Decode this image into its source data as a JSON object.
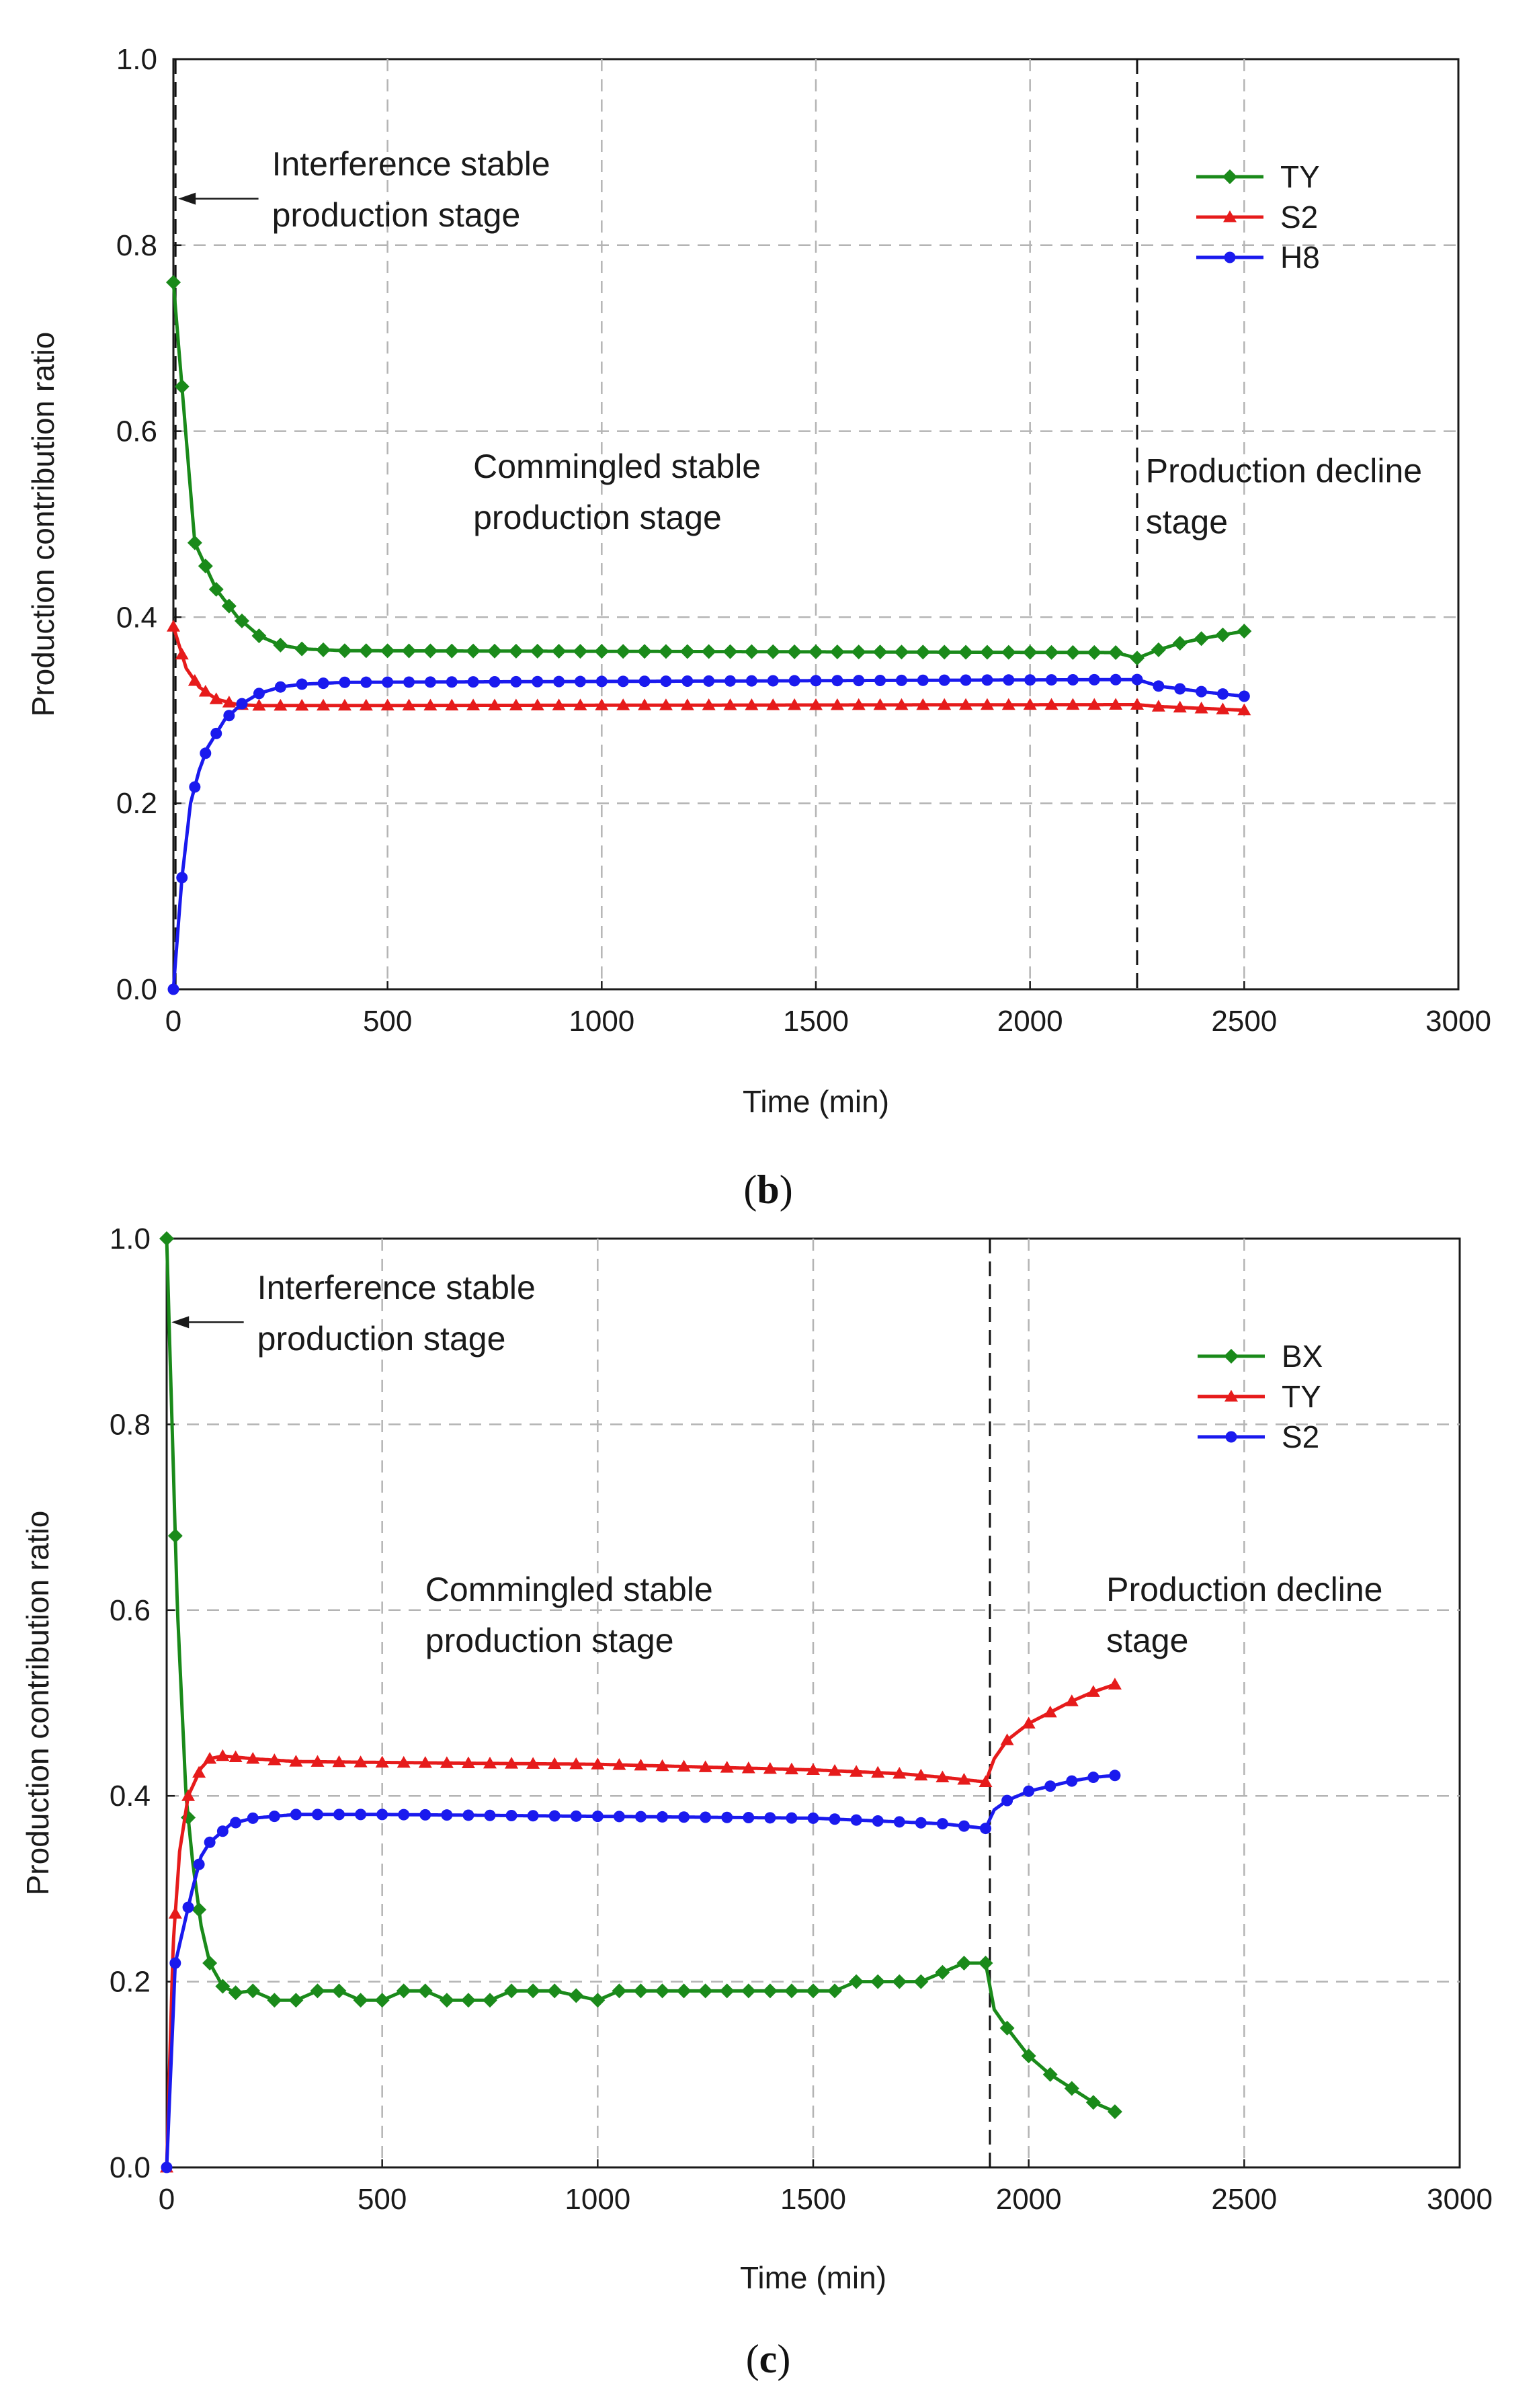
{
  "chart_data": [
    {
      "id": "b",
      "type": "line",
      "subfigure_label": "b",
      "xlabel": "Time (min)",
      "ylabel": "Production contribution ratio",
      "xlim": [
        0,
        3000
      ],
      "ylim": [
        0,
        1.0
      ],
      "xticks": [
        0,
        500,
        1000,
        1500,
        2000,
        2500,
        3000
      ],
      "yticks": [
        0.0,
        0.2,
        0.4,
        0.6,
        0.8,
        1.0
      ],
      "xtick_labels": [
        "0",
        "500",
        "1000",
        "1500",
        "2000",
        "2500",
        "3000"
      ],
      "ytick_labels": [
        "0.0",
        "0.2",
        "0.4",
        "0.6",
        "0.8",
        "1.0"
      ],
      "grid": true,
      "stage_lines_x": [
        5,
        2250
      ],
      "annotations": [
        {
          "text": "Interference stable production stage",
          "lines": [
            "Interference stable",
            "production stage"
          ],
          "pos": [
            230,
            0.875
          ],
          "arrow_to": [
            5,
            0.85
          ]
        },
        {
          "text": "Commingled stable production stage",
          "lines": [
            "Commingled stable",
            "production stage"
          ],
          "pos": [
            700,
            0.55
          ]
        },
        {
          "text": "Production decline stage",
          "lines": [
            "Production decline",
            "stage"
          ],
          "pos": [
            2270,
            0.545
          ]
        }
      ],
      "legend_position": "top-right",
      "series": [
        {
          "name": "TY",
          "color": "#1a8a1a",
          "marker": "diamond",
          "points": [
            [
              0,
              0.76
            ],
            [
              50,
              0.48
            ],
            [
              100,
              0.43
            ],
            [
              150,
              0.4
            ],
            [
              200,
              0.38
            ],
            [
              250,
              0.37
            ],
            [
              300,
              0.366
            ],
            [
              350,
              0.365
            ],
            [
              400,
              0.364
            ],
            [
              2200,
              0.362
            ],
            [
              2250,
              0.356
            ],
            [
              2300,
              0.365
            ],
            [
              2350,
              0.372
            ],
            [
              2400,
              0.377
            ],
            [
              2450,
              0.381
            ],
            [
              2500,
              0.385
            ]
          ]
        },
        {
          "name": "S2",
          "color": "#e61b1b",
          "marker": "triangle",
          "points": [
            [
              0,
              0.39
            ],
            [
              30,
              0.345
            ],
            [
              60,
              0.325
            ],
            [
              100,
              0.312
            ],
            [
              150,
              0.306
            ],
            [
              200,
              0.305
            ],
            [
              2250,
              0.306
            ],
            [
              2300,
              0.304
            ],
            [
              2400,
              0.302
            ],
            [
              2500,
              0.3
            ]
          ]
        },
        {
          "name": "H8",
          "color": "#1a1aee",
          "marker": "circle",
          "points": [
            [
              0,
              0.0
            ],
            [
              20,
              0.12
            ],
            [
              40,
              0.2
            ],
            [
              60,
              0.235
            ],
            [
              80,
              0.26
            ],
            [
              120,
              0.29
            ],
            [
              160,
              0.307
            ],
            [
              200,
              0.318
            ],
            [
              250,
              0.325
            ],
            [
              300,
              0.328
            ],
            [
              400,
              0.33
            ],
            [
              2250,
              0.333
            ],
            [
              2300,
              0.326
            ],
            [
              2400,
              0.32
            ],
            [
              2500,
              0.315
            ]
          ]
        }
      ]
    },
    {
      "id": "c",
      "type": "line",
      "subfigure_label": "c",
      "xlabel": "Time (min)",
      "ylabel": "Production contribution ratio",
      "xlim": [
        0,
        3000
      ],
      "ylim": [
        0,
        1.0
      ],
      "xticks": [
        0,
        500,
        1000,
        1500,
        2000,
        2500,
        3000
      ],
      "yticks": [
        0.0,
        0.2,
        0.4,
        0.6,
        0.8,
        1.0
      ],
      "xtick_labels": [
        "0",
        "500",
        "1000",
        "1500",
        "2000",
        "2500",
        "3000"
      ],
      "ytick_labels": [
        "0.0",
        "0.2",
        "0.4",
        "0.6",
        "0.8",
        "1.0"
      ],
      "grid": true,
      "stage_lines_x": [
        1910
      ],
      "annotations": [
        {
          "text": "Interference stable production stage",
          "lines": [
            "Interference stable",
            "production stage"
          ],
          "pos": [
            210,
            0.935
          ],
          "arrow_to": [
            5,
            0.91
          ]
        },
        {
          "text": "Commingled stable production stage",
          "lines": [
            "Commingled stable",
            "production stage"
          ],
          "pos": [
            600,
            0.61
          ]
        },
        {
          "text": "Production decline stage",
          "lines": [
            "Production decline",
            "stage"
          ],
          "pos": [
            2180,
            0.61
          ]
        }
      ],
      "legend_position": "top-right",
      "series": [
        {
          "name": "BX",
          "color": "#1a8a1a",
          "marker": "diamond",
          "points": [
            [
              0,
              1.0
            ],
            [
              25,
              0.6
            ],
            [
              45,
              0.4
            ],
            [
              60,
              0.33
            ],
            [
              80,
              0.26
            ],
            [
              100,
              0.22
            ],
            [
              130,
              0.195
            ],
            [
              160,
              0.188
            ],
            [
              200,
              0.19
            ],
            [
              250,
              0.18
            ],
            [
              300,
              0.18
            ],
            [
              350,
              0.19
            ],
            [
              400,
              0.19
            ],
            [
              450,
              0.18
            ],
            [
              500,
              0.18
            ],
            [
              550,
              0.19
            ],
            [
              600,
              0.19
            ],
            [
              650,
              0.18
            ],
            [
              700,
              0.18
            ],
            [
              750,
              0.18
            ],
            [
              800,
              0.19
            ],
            [
              900,
              0.19
            ],
            [
              1000,
              0.18
            ],
            [
              1050,
              0.19
            ],
            [
              1500,
              0.19
            ],
            [
              1550,
              0.19
            ],
            [
              1600,
              0.2
            ],
            [
              1700,
              0.2
            ],
            [
              1750,
              0.2
            ],
            [
              1800,
              0.21
            ],
            [
              1850,
              0.22
            ],
            [
              1900,
              0.22
            ],
            [
              1920,
              0.17
            ],
            [
              1950,
              0.15
            ],
            [
              2000,
              0.12
            ],
            [
              2050,
              0.1
            ],
            [
              2100,
              0.085
            ],
            [
              2150,
              0.07
            ],
            [
              2200,
              0.06
            ]
          ]
        },
        {
          "name": "TY",
          "color": "#e61b1b",
          "marker": "triangle",
          "points": [
            [
              0,
              0.0
            ],
            [
              15,
              0.24
            ],
            [
              30,
              0.34
            ],
            [
              50,
              0.4
            ],
            [
              80,
              0.43
            ],
            [
              100,
              0.44
            ],
            [
              130,
              0.443
            ],
            [
              200,
              0.44
            ],
            [
              300,
              0.437
            ],
            [
              500,
              0.436
            ],
            [
              1000,
              0.434
            ],
            [
              1500,
              0.428
            ],
            [
              1700,
              0.424
            ],
            [
              1800,
              0.42
            ],
            [
              1900,
              0.415
            ],
            [
              1920,
              0.44
            ],
            [
              1950,
              0.46
            ],
            [
              2000,
              0.478
            ],
            [
              2050,
              0.49
            ],
            [
              2100,
              0.502
            ],
            [
              2150,
              0.512
            ],
            [
              2200,
              0.52
            ]
          ]
        },
        {
          "name": "S2",
          "color": "#1a1aee",
          "marker": "circle",
          "points": [
            [
              0,
              0.0
            ],
            [
              20,
              0.22
            ],
            [
              40,
              0.26
            ],
            [
              60,
              0.3
            ],
            [
              80,
              0.335
            ],
            [
              100,
              0.35
            ],
            [
              150,
              0.37
            ],
            [
              200,
              0.376
            ],
            [
              300,
              0.38
            ],
            [
              500,
              0.38
            ],
            [
              1000,
              0.378
            ],
            [
              1500,
              0.376
            ],
            [
              1800,
              0.37
            ],
            [
              1900,
              0.365
            ],
            [
              1920,
              0.385
            ],
            [
              1950,
              0.395
            ],
            [
              2000,
              0.405
            ],
            [
              2100,
              0.416
            ],
            [
              2150,
              0.42
            ],
            [
              2200,
              0.422
            ]
          ]
        }
      ]
    }
  ]
}
